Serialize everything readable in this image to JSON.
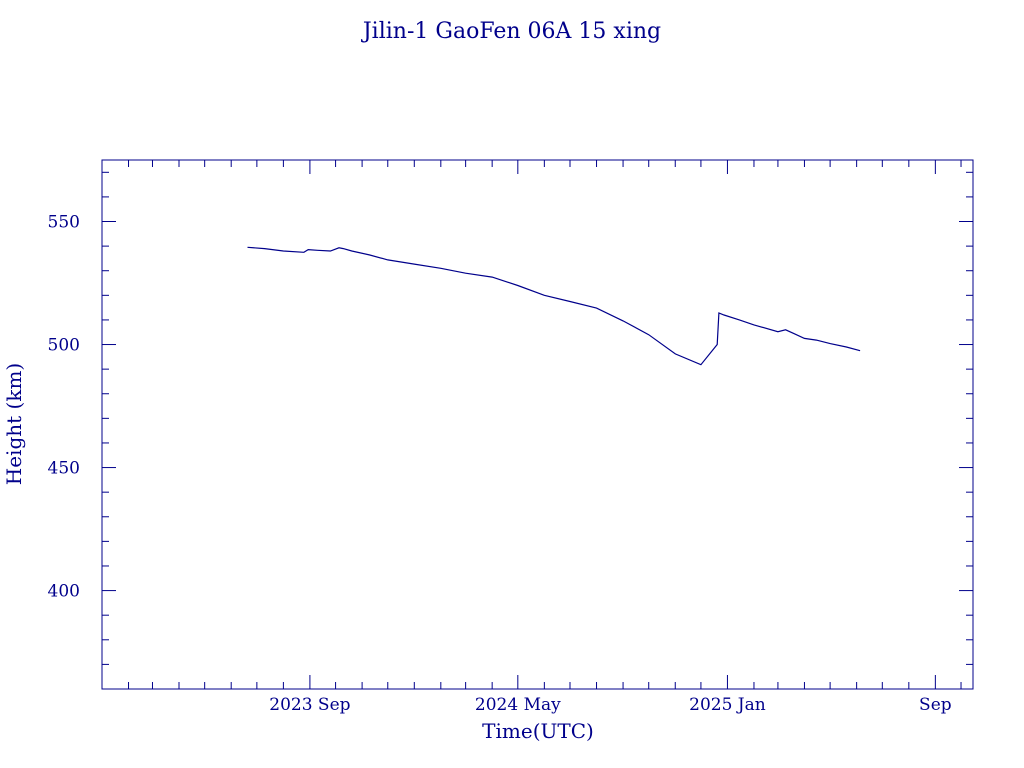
{
  "chart_data": {
    "type": "line",
    "title": "Jilin-1 GaoFen 06A 15 xing",
    "xlabel": "Time(UTC)",
    "ylabel": "Height (km)",
    "xlim": [
      "2023-01-01",
      "2025-10-15"
    ],
    "ylim": [
      360,
      575
    ],
    "x_ticks": [
      {
        "date": "2023-09-01",
        "label": "2023 Sep"
      },
      {
        "date": "2024-05-01",
        "label": "2024 May"
      },
      {
        "date": "2025-01-01",
        "label": "2025 Jan"
      },
      {
        "date": "2025-09-01",
        "label": "Sep"
      }
    ],
    "y_ticks": [
      400,
      450,
      500,
      550
    ],
    "grid": false,
    "line_color": "#00008b",
    "series": [
      {
        "x": [
          "2023-06-20",
          "2023-07-10",
          "2023-08-01",
          "2023-08-25",
          "2023-08-30",
          "2023-09-10",
          "2023-09-25",
          "2023-10-05",
          "2023-10-10",
          "2023-10-20",
          "2023-11-10",
          "2023-12-01",
          "2024-01-01",
          "2024-02-01",
          "2024-03-01",
          "2024-04-01",
          "2024-05-01",
          "2024-06-01",
          "2024-07-01",
          "2024-08-01",
          "2024-09-01",
          "2024-10-01",
          "2024-11-01",
          "2024-12-01",
          "2024-12-20",
          "2024-12-22",
          "2024-12-28",
          "2025-01-15",
          "2025-02-01",
          "2025-03-01",
          "2025-03-10",
          "2025-03-20",
          "2025-04-01",
          "2025-04-15",
          "2025-05-01",
          "2025-05-20",
          "2025-06-05"
        ],
        "y": [
          539.5,
          539,
          538,
          537.5,
          538.6,
          538.3,
          538,
          539.3,
          539,
          538,
          536.4,
          534.4,
          532.7,
          531,
          529,
          527.4,
          524,
          520,
          517.5,
          514.8,
          509.6,
          504,
          496.2,
          491.8,
          500,
          512.8,
          512,
          510,
          508,
          505.2,
          506,
          504.4,
          502.5,
          501.8,
          500.4,
          499,
          497.5
        ]
      }
    ]
  }
}
